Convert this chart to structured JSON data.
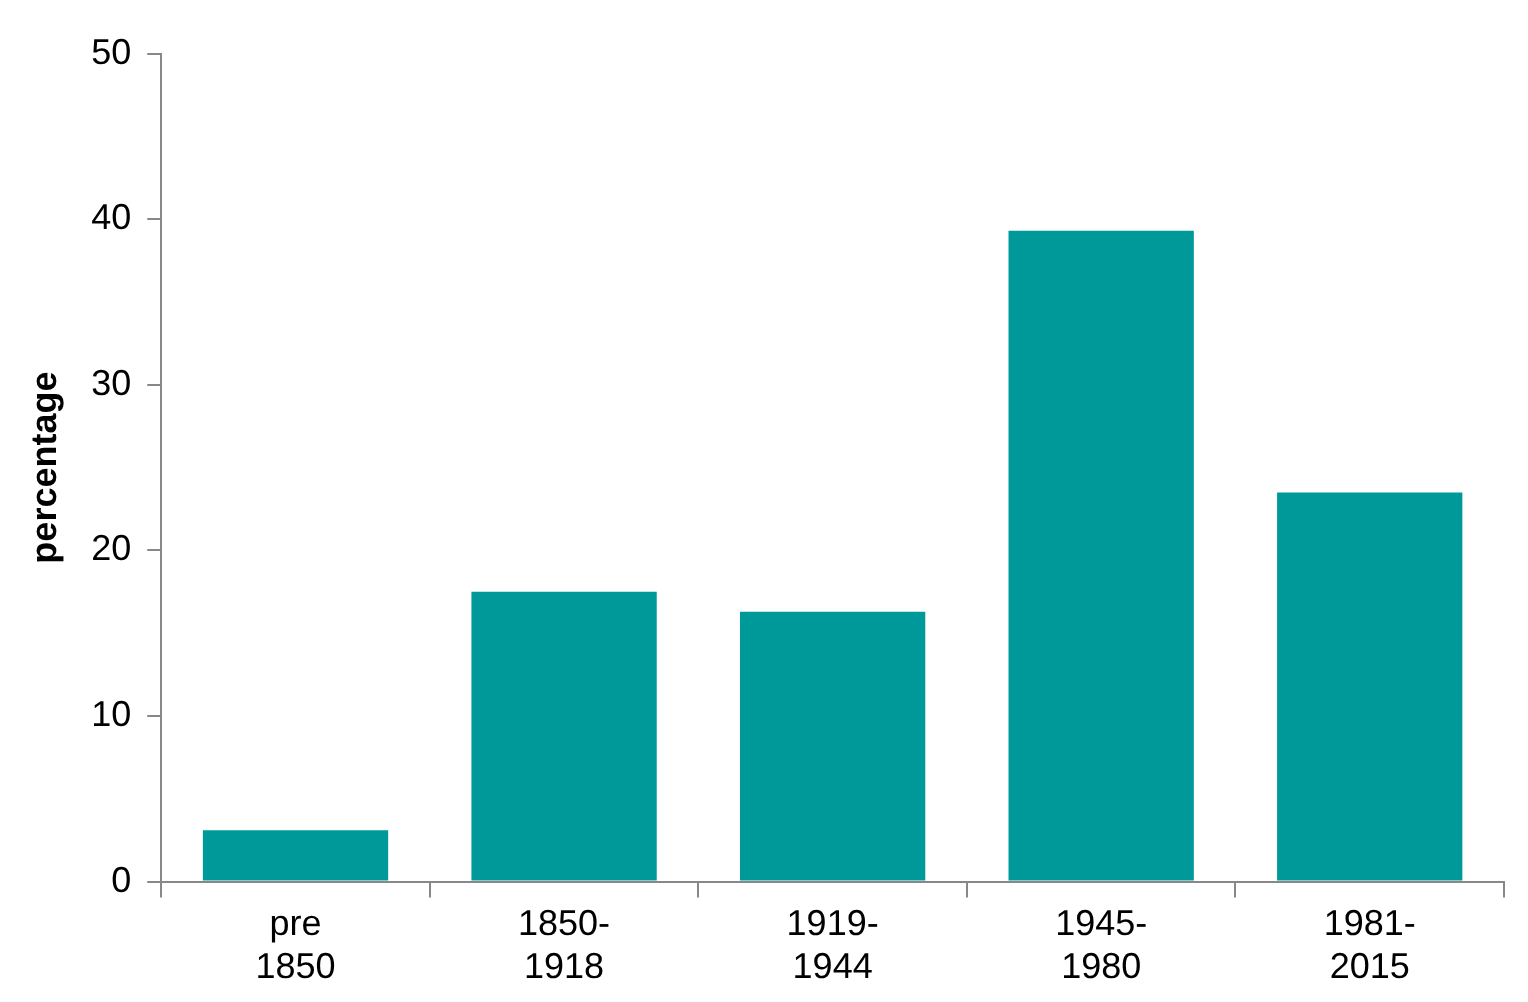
{
  "chart_data": {
    "type": "bar",
    "ylabel": "percentage",
    "categories": [
      "pre 1850",
      "1850-1918",
      "1919-1944",
      "1945-1980",
      "1981-2015"
    ],
    "values": [
      3.1,
      17.5,
      16.3,
      39.3,
      23.5
    ],
    "color": "#009999",
    "ylim": [
      0,
      50
    ],
    "yticks": [
      0,
      10,
      20,
      30,
      40,
      50
    ],
    "grid": false,
    "legend": false
  }
}
